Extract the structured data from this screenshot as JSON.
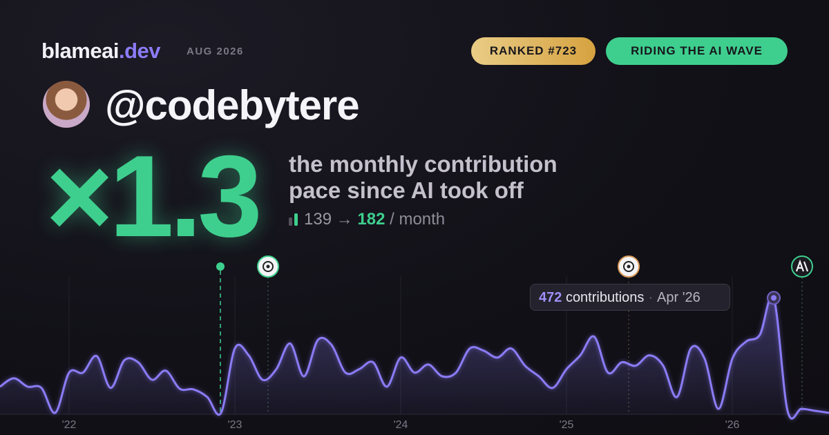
{
  "header": {
    "brand": "blameai",
    "brand_tld": ".dev",
    "date": "AUG 2026",
    "badges": [
      "RANKED #723",
      "RIDING THE AI WAVE"
    ]
  },
  "profile": {
    "handle": "@codebytere"
  },
  "stat": {
    "multiplier": "×1.3",
    "description": [
      "the monthly contribution",
      "pace since AI took off"
    ],
    "before": 139,
    "arrow": "→",
    "after": 182,
    "unit": "/ month"
  },
  "chart_data": {
    "type": "area",
    "color": "#8b7cf6",
    "categories": [
      null,
      null,
      null,
      null,
      null,
      "'22",
      null,
      null,
      null,
      null,
      null,
      null,
      null,
      null,
      null,
      null,
      null,
      "'23",
      null,
      null,
      null,
      null,
      null,
      null,
      null,
      null,
      null,
      null,
      null,
      "'24",
      null,
      null,
      null,
      null,
      null,
      null,
      null,
      null,
      null,
      null,
      null,
      "'25",
      null,
      null,
      null,
      null,
      null,
      null,
      null,
      null,
      null,
      null,
      null,
      "'26",
      null,
      null,
      null,
      null,
      null,
      null,
      null
    ],
    "values": [
      112,
      146,
      112,
      107,
      6,
      169,
      169,
      236,
      107,
      219,
      211,
      140,
      177,
      104,
      101,
      70,
      6,
      267,
      239,
      140,
      183,
      287,
      154,
      301,
      281,
      169,
      183,
      211,
      112,
      230,
      169,
      202,
      154,
      169,
      267,
      258,
      230,
      267,
      197,
      154,
      107,
      183,
      239,
      315,
      169,
      211,
      197,
      239,
      197,
      70,
      267,
      225,
      22,
      225,
      295,
      323,
      472,
      14,
      22,
      14,
      6
    ],
    "ylim": [
      0,
      560
    ],
    "tooltip": {
      "label": "contributions",
      "separator": "·",
      "date": "Apr '26"
    }
  }
}
